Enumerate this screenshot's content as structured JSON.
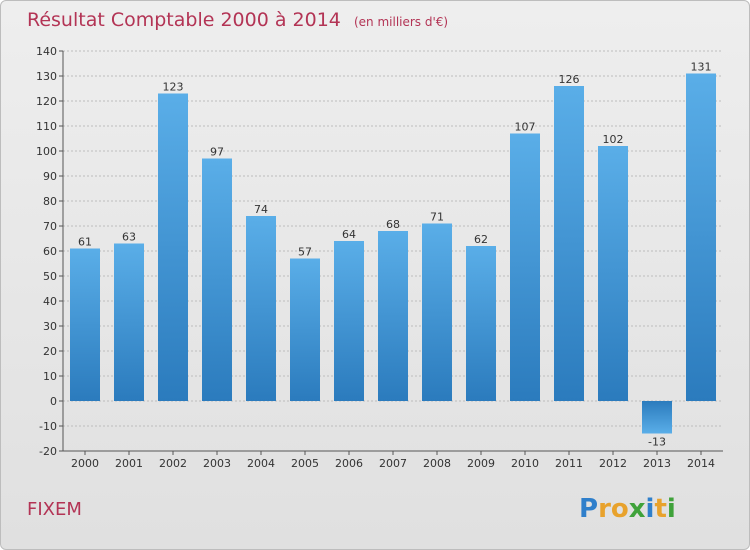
{
  "chart_data": {
    "type": "bar",
    "title": "Résultat Comptable 2000 à 2014",
    "subtitle": "(en milliers d'€)",
    "xlabel": "",
    "ylabel": "",
    "categories": [
      "2000",
      "2001",
      "2002",
      "2003",
      "2004",
      "2005",
      "2006",
      "2007",
      "2008",
      "2009",
      "2010",
      "2011",
      "2012",
      "2013",
      "2014"
    ],
    "values": [
      61,
      63,
      123,
      97,
      74,
      57,
      64,
      68,
      71,
      62,
      107,
      126,
      102,
      -13,
      131
    ],
    "data_labels": [
      "61",
      "63",
      "123",
      "97",
      "74",
      "57",
      "64",
      "68",
      "71",
      "62",
      "107",
      "126",
      "102",
      "-13",
      "131"
    ],
    "ylim": [
      -20,
      140
    ],
    "yticks": [
      -20,
      -10,
      0,
      10,
      20,
      30,
      40,
      50,
      60,
      70,
      80,
      90,
      100,
      110,
      120,
      130,
      140
    ],
    "grid": true,
    "bar_color_top": "#5aaee8",
    "bar_color_bottom": "#2b7bbd"
  },
  "footer": {
    "entity": "FIXEM",
    "brand": "Proxiti",
    "brand_letters": [
      {
        "ch": "P",
        "color": "#2f7fcb"
      },
      {
        "ch": "r",
        "color": "#e8a22c"
      },
      {
        "ch": "o",
        "color": "#e8a22c"
      },
      {
        "ch": "x",
        "color": "#3fa23a"
      },
      {
        "ch": "i",
        "color": "#2f7fcb"
      },
      {
        "ch": "t",
        "color": "#e8a22c"
      },
      {
        "ch": "i",
        "color": "#3fa23a"
      }
    ]
  }
}
